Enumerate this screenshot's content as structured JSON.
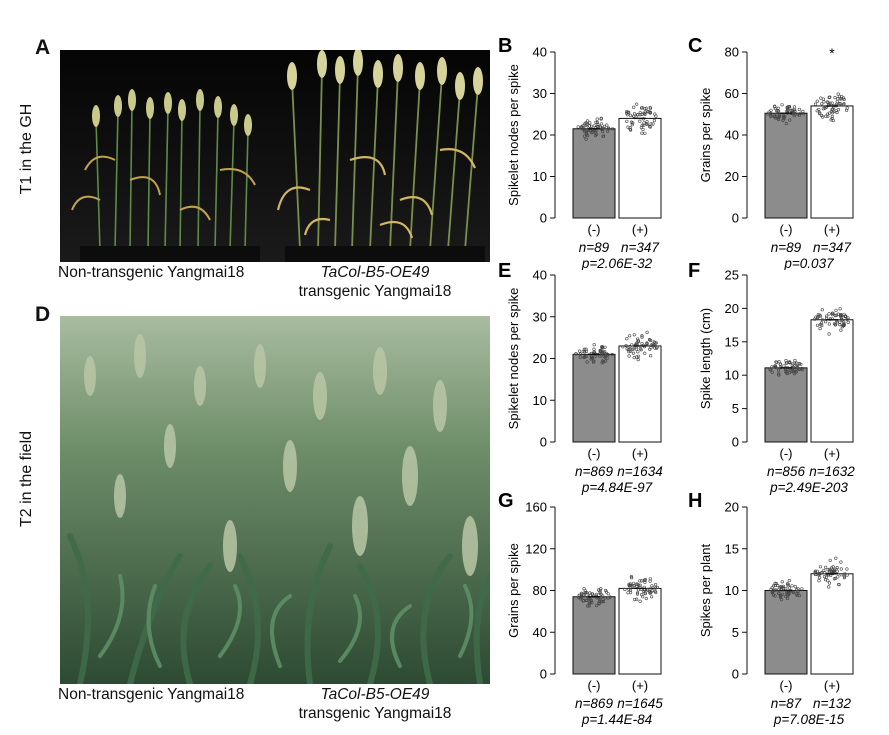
{
  "photo_top": {
    "letter": "A",
    "side_label": "T1 in the GH",
    "caption_left": "Non-transgenic Yangmai18",
    "caption_right_line1": "TaCol-B5-OE49",
    "caption_right_line2": "transgenic Yangmai18"
  },
  "photo_bottom": {
    "letter": "D",
    "side_label": "T2 in the field",
    "caption_left": "Non-transgenic Yangmai18",
    "caption_right_line1": "TaCol-B5-OE49",
    "caption_right_line2": "transgenic Yangmai18"
  },
  "chart_data": [
    {
      "panel": "B",
      "type": "bar",
      "ylabel": "Spikelet nodes per spike",
      "ylim": [
        0,
        40
      ],
      "yticks": [
        0,
        10,
        20,
        30,
        40
      ],
      "categories": [
        "(-)",
        "(+)"
      ],
      "values": [
        21.5,
        24
      ],
      "significance": "",
      "n": [
        "n=89",
        "n=347"
      ],
      "p": "p=2.06E-32"
    },
    {
      "panel": "C",
      "type": "bar",
      "ylabel": "Grains per spike",
      "ylim": [
        0,
        80
      ],
      "yticks": [
        0,
        20,
        40,
        60,
        80
      ],
      "categories": [
        "(-)",
        "(+)"
      ],
      "values": [
        50.5,
        54
      ],
      "significance": "*",
      "n": [
        "n=89",
        "n=347"
      ],
      "p": "p=0.037"
    },
    {
      "panel": "E",
      "type": "bar",
      "ylabel": "Spikelet nodes per spike",
      "ylim": [
        0,
        40
      ],
      "yticks": [
        0,
        10,
        20,
        30,
        40
      ],
      "categories": [
        "(-)",
        "(+)"
      ],
      "values": [
        21,
        23
      ],
      "significance": "",
      "n": [
        "n=869",
        "n=1634"
      ],
      "p": "p=4.84E-97"
    },
    {
      "panel": "F",
      "type": "bar",
      "ylabel": "Spike length (cm)",
      "ylim": [
        0,
        25
      ],
      "yticks": [
        0,
        5,
        10,
        15,
        20,
        25
      ],
      "categories": [
        "(-)",
        "(+)"
      ],
      "values": [
        11.1,
        18.3
      ],
      "significance": "",
      "n": [
        "n=856",
        "n=1632"
      ],
      "p": "p=2.49E-203"
    },
    {
      "panel": "G",
      "type": "bar",
      "ylabel": "Grains per spike",
      "ylim": [
        0,
        160
      ],
      "yticks": [
        0,
        40,
        80,
        120,
        160
      ],
      "categories": [
        "(-)",
        "(+)"
      ],
      "values": [
        74,
        82
      ],
      "significance": "",
      "n": [
        "n=869",
        "n=1645"
      ],
      "p": "p=1.44E-84"
    },
    {
      "panel": "H",
      "type": "bar",
      "ylabel": "Spikes per plant",
      "ylim": [
        0,
        20
      ],
      "yticks": [
        0,
        5,
        10,
        15,
        20
      ],
      "categories": [
        "(-)",
        "(+)"
      ],
      "values": [
        10,
        12
      ],
      "significance": "",
      "n": [
        "n=87",
        "n=132"
      ],
      "p": "p=7.08E-15"
    }
  ],
  "colors": {
    "bar_negative": "#8c8c8c",
    "bar_positive": "#ffffff",
    "points": "#444444"
  }
}
